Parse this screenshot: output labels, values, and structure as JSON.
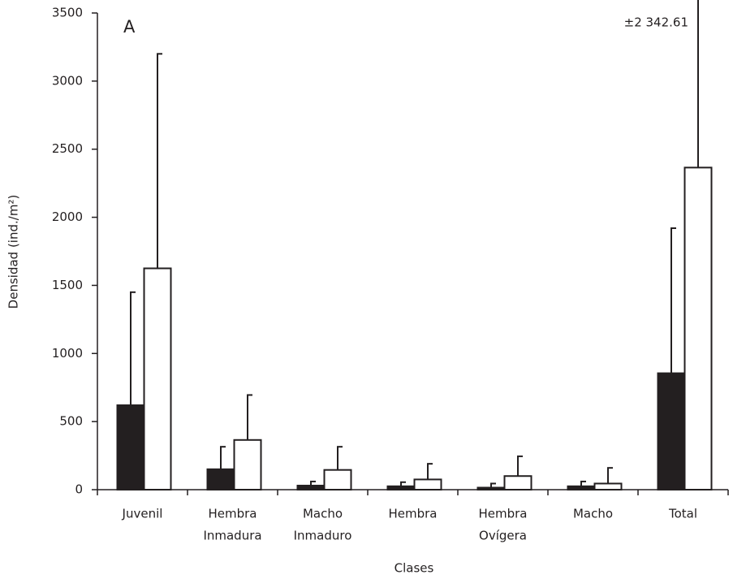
{
  "chart_data": {
    "type": "bar",
    "x_label": "Clases",
    "y_label": "Densidad (ind./m²)",
    "annotations": [
      {
        "text": "A"
      },
      {
        "text": "±2 342.61"
      }
    ],
    "categories": [
      [
        "Juvenil"
      ],
      [
        "Hembra",
        "Inmadura"
      ],
      [
        "Macho",
        "Inmaduro"
      ],
      [
        "Hembra"
      ],
      [
        "Hembra",
        "Ovígera"
      ],
      [
        "Macho"
      ],
      [
        "Total"
      ]
    ],
    "series": [
      {
        "color": "#231f20",
        "values": [
          620,
          150,
          30,
          25,
          15,
          25,
          855
        ],
        "errors": [
          830,
          165,
          30,
          30,
          30,
          35,
          1065
        ]
      },
      {
        "color": "#ffffff",
        "values": [
          1625,
          365,
          145,
          75,
          100,
          45,
          2365
        ],
        "errors": [
          1575,
          330,
          170,
          115,
          145,
          115,
          2342.61
        ]
      }
    ],
    "ylim": [
      0,
      3500
    ],
    "yticks": [
      0,
      500,
      1000,
      1500,
      2000,
      2500,
      3000,
      3500
    ]
  }
}
